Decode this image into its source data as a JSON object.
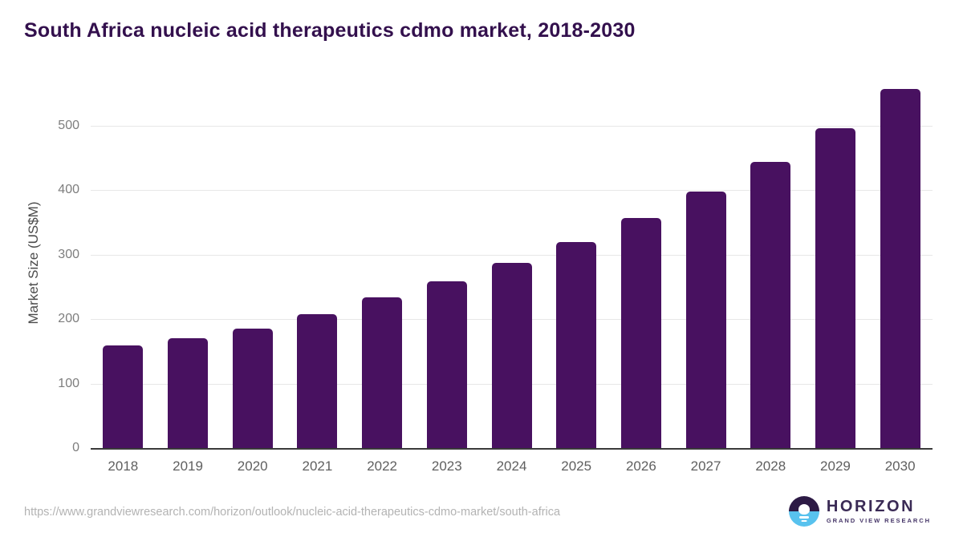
{
  "chart_data": {
    "type": "bar",
    "title": "South Africa nucleic acid therapeutics cdmo market, 2018-2030",
    "categories": [
      "2018",
      "2019",
      "2020",
      "2021",
      "2022",
      "2023",
      "2024",
      "2025",
      "2026",
      "2027",
      "2028",
      "2029",
      "2030"
    ],
    "values": [
      159,
      170,
      185,
      208,
      234,
      259,
      288,
      320,
      357,
      398,
      444,
      496,
      557
    ],
    "xlabel": "",
    "ylabel": "Market Size (US$M)",
    "ylim": [
      0,
      571
    ],
    "y_ticks": [
      0,
      100,
      200,
      300,
      400,
      500
    ],
    "grid": "horizontal",
    "legend": "none",
    "bar_color": "#481160"
  },
  "footer": {
    "source_url": "https://www.grandviewresearch.com/horizon/outlook/nucleic-acid-therapeutics-cdmo-market/south-africa",
    "logo": {
      "name": "HORIZON",
      "subtitle": "GRAND VIEW RESEARCH"
    }
  },
  "colors": {
    "title": "#33104d",
    "bar": "#481160",
    "axis_line": "#3a3a3a",
    "gridline": "#e7e7e7",
    "tick_text": "#7d7d7d",
    "url_text": "#b3b3b3",
    "logo_dark_purple": "#2d1a45",
    "logo_light_blue": "#58c2ee"
  }
}
